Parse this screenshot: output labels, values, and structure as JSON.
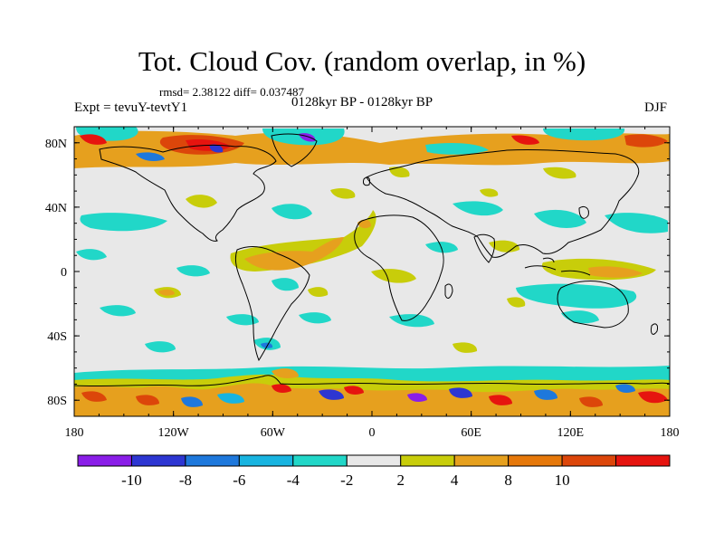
{
  "header": {
    "title": "Tot. Cloud Cov. (random overlap, in %)",
    "stats": "rmsd= 2.38122 diff= 0.037487",
    "experiment": "Expt = tevuY-tevtY1",
    "period": "0128kyr BP - 0128kyr BP",
    "season": "DJF"
  },
  "axes": {
    "lat_labels": [
      "80N",
      "40N",
      "0",
      "40S",
      "80S"
    ],
    "lat_values": [
      80,
      40,
      0,
      -40,
      -80
    ],
    "lon_labels": [
      "180",
      "120W",
      "60W",
      "0",
      "60E",
      "120E",
      "180"
    ],
    "lon_values": [
      -180,
      -120,
      -60,
      0,
      60,
      120,
      180
    ],
    "lat_range": [
      -90,
      90
    ],
    "lon_range": [
      -180,
      180
    ]
  },
  "colorbar": {
    "labels": [
      "-10",
      "-8",
      "-6",
      "-4",
      "-2",
      "2",
      "4",
      "8",
      "10"
    ],
    "colors": [
      "#8a1ee8",
      "#2d36d2",
      "#1e78dc",
      "#18b4e0",
      "#21d7c8",
      "#e8e8e8",
      "#c8cd0a",
      "#e6a01e",
      "#e6780a",
      "#dc460a",
      "#e6140f"
    ]
  },
  "colors": {
    "ocean_background": "#e8e8e8",
    "coastline": "#000000"
  }
}
